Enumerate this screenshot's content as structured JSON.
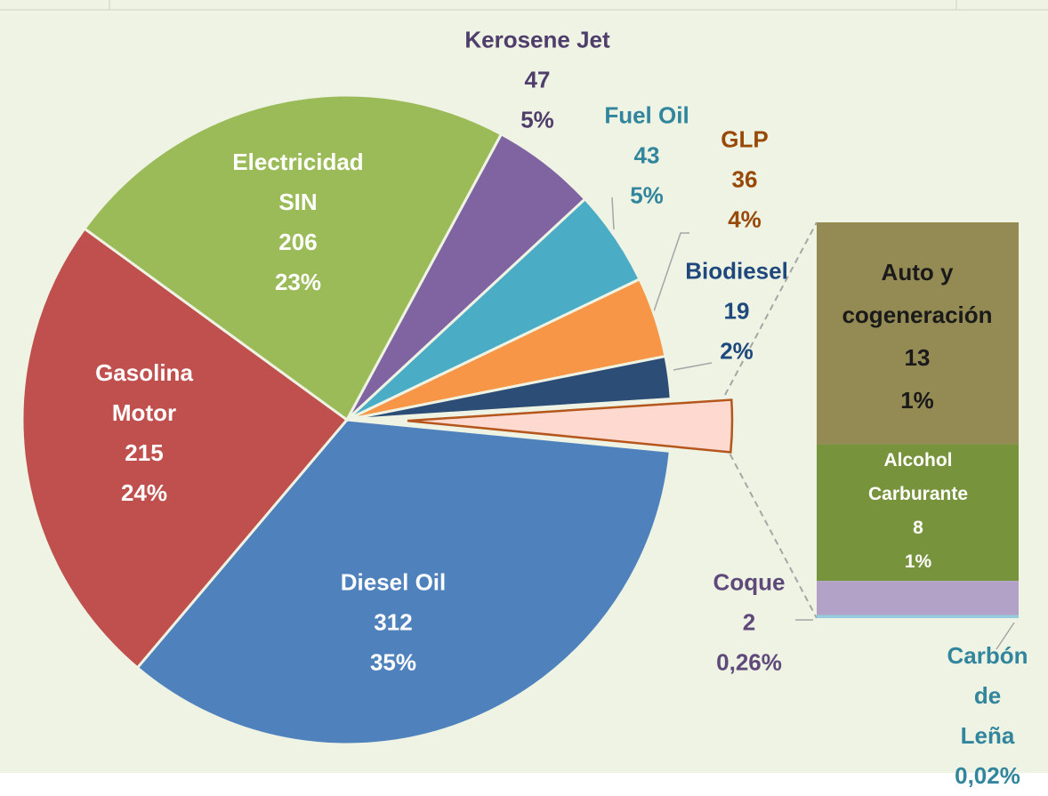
{
  "chart_data": {
    "type": "pie-of-bar",
    "categories": [
      "Diesel Oil",
      "Gasolina\nMotor",
      "Electricidad\nSIN",
      "Kerosene Jet",
      "Fuel Oil",
      "GLP",
      "Biodiesel"
    ],
    "values": [
      312,
      215,
      206,
      47,
      43,
      36,
      19
    ],
    "percent_labels": [
      "35%",
      "24%",
      "23%",
      "5%",
      "5%",
      "4%",
      "2%"
    ],
    "colors": [
      "#4f81bd",
      "#c0504d",
      "#9bbb59",
      "#8064a2",
      "#4bacc6",
      "#f79646",
      "#2c4d75"
    ],
    "other_color": "#fdd9cf",
    "stack": {
      "categories": [
        "Auto y\ncogeneración",
        "Alcohol\nCarburante",
        "Coque",
        "Carbón de\nLeña"
      ],
      "values": [
        13,
        8,
        2,
        0.18
      ],
      "percent_labels": [
        "1%",
        "1%",
        "0,26%",
        "0,02%"
      ],
      "colors": [
        "#948a54",
        "#77933c",
        "#b3a2c7",
        "#93cddd"
      ]
    }
  }
}
